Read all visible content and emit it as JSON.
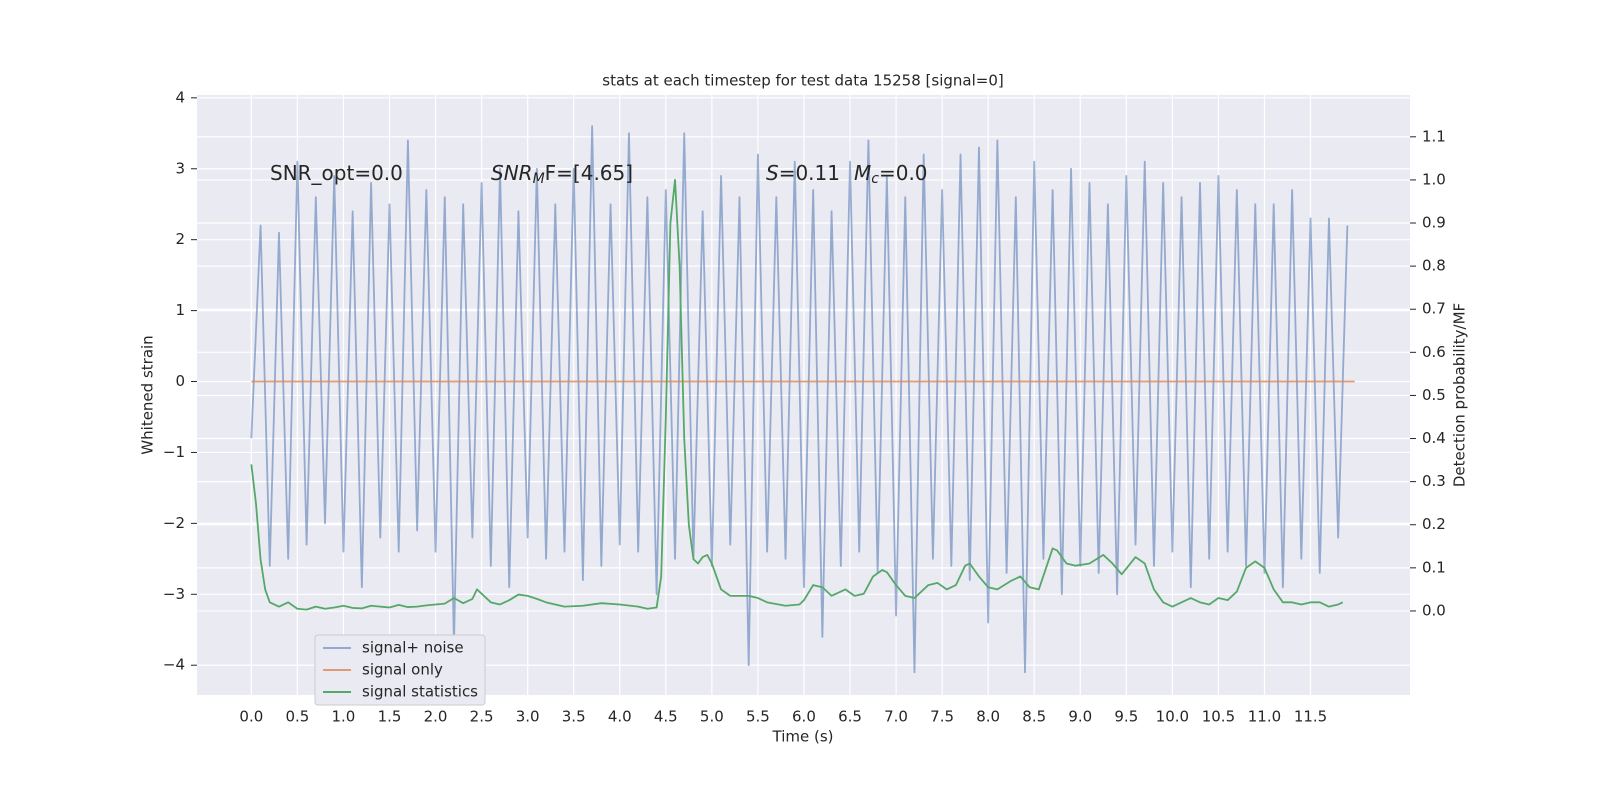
{
  "chart_data": {
    "type": "line",
    "title": "stats at each timestep for test data 15258 [signal=0]",
    "xlabel": "Time (s)",
    "ylabel": "Whitened strain",
    "y2label": "Detection probability/MF",
    "annotations": [
      [
        "SNR_opt=0.0"
      ],
      [
        "SNR",
        "M",
        "F=[4.65]"
      ],
      [
        "S",
        "=0.11",
        "M",
        "c",
        "=0.0"
      ]
    ],
    "xlim": [
      -0.59,
      12.58
    ],
    "ylim": [
      -4.42,
      4.04
    ],
    "y2lim": [
      -0.195,
      1.197
    ],
    "xticks": [
      {
        "value": 0,
        "label": "0.0"
      },
      0.5,
      {
        "value": 1,
        "label": "1.0"
      },
      1.5,
      {
        "value": 2,
        "label": "2.0"
      },
      2.5,
      {
        "value": 3,
        "label": "3.0"
      },
      3.5,
      {
        "value": 4,
        "label": "4.0"
      },
      4.5,
      {
        "value": 5,
        "label": "5.0"
      },
      5.5,
      {
        "value": 6,
        "label": "6.0"
      },
      6.5,
      {
        "value": 7,
        "label": "7.0"
      },
      7.5,
      {
        "value": 8,
        "label": "8.0"
      },
      8.5,
      {
        "value": 9,
        "label": "9.0"
      },
      9.5,
      {
        "value": 10,
        "label": "10.0"
      },
      10.5,
      {
        "value": 11,
        "label": "11.0"
      },
      11.5
    ],
    "yticks": [
      {
        "value": -4,
        "label": "−4"
      },
      {
        "value": -3,
        "label": "−3"
      },
      {
        "value": -2,
        "label": "−2"
      },
      {
        "value": -1,
        "label": "−1"
      },
      0,
      1,
      2,
      3,
      4
    ],
    "y2ticks": [
      {
        "value": 0,
        "label": "0.0"
      },
      0.1,
      0.2,
      0.3,
      0.4,
      0.5,
      0.6,
      0.7,
      0.8,
      0.9,
      {
        "value": 1,
        "label": "1.0"
      },
      1.1
    ],
    "grid": true,
    "legend_loc": "lower left",
    "series": [
      {
        "name": "signal+ noise",
        "color": "#4c72b0",
        "alpha": 0.55,
        "axis": "y",
        "x": [
          0,
          0.1,
          0.2,
          0.3,
          0.4,
          0.5,
          0.6,
          0.7,
          0.8,
          0.9,
          1,
          1.1,
          1.2,
          1.3,
          1.4,
          1.5,
          1.6,
          1.7,
          1.8,
          1.9,
          2,
          2.1,
          2.2,
          2.3,
          2.4,
          2.5,
          2.6,
          2.7,
          2.8,
          2.9,
          3,
          3.1,
          3.2,
          3.3,
          3.4,
          3.5,
          3.6,
          3.7,
          3.8,
          3.9,
          4,
          4.1,
          4.2,
          4.3,
          4.4,
          4.5,
          4.6,
          4.7,
          4.8,
          4.9,
          5,
          5.1,
          5.2,
          5.3,
          5.4,
          5.5,
          5.6,
          5.7,
          5.8,
          5.9,
          6,
          6.1,
          6.2,
          6.3,
          6.4,
          6.5,
          6.6,
          6.7,
          6.8,
          6.9,
          7,
          7.1,
          7.2,
          7.3,
          7.4,
          7.5,
          7.6,
          7.7,
          7.8,
          7.9,
          8,
          8.1,
          8.2,
          8.3,
          8.4,
          8.5,
          8.6,
          8.7,
          8.8,
          8.9,
          9,
          9.1,
          9.2,
          9.3,
          9.4,
          9.5,
          9.6,
          9.7,
          9.8,
          9.9,
          10,
          10.1,
          10.2,
          10.3,
          10.4,
          10.5,
          10.6,
          10.7,
          10.8,
          10.9,
          11,
          11.1,
          11.2,
          11.3,
          11.4,
          11.5,
          11.6,
          11.7,
          11.8,
          11.9
        ],
        "values": [
          -0.8,
          2.2,
          -2.6,
          2.1,
          -2.5,
          3.1,
          -2.3,
          2.6,
          -2.0,
          2.9,
          -2.4,
          2.4,
          -2.9,
          2.8,
          -2.2,
          2.5,
          -2.4,
          3.4,
          -2.1,
          2.7,
          -2.4,
          2.6,
          -3.7,
          2.5,
          -2.2,
          2.8,
          -2.6,
          3.0,
          -2.9,
          2.4,
          -2.2,
          3.0,
          -2.5,
          2.5,
          -2.4,
          3.0,
          -2.8,
          3.6,
          -2.6,
          2.5,
          -2.3,
          3.5,
          -2.4,
          2.6,
          -3.0,
          2.7,
          -2.5,
          3.5,
          -2.5,
          2.4,
          -2.6,
          2.9,
          -2.3,
          2.6,
          -4.0,
          3.2,
          -2.4,
          2.6,
          -2.5,
          3.1,
          -2.9,
          2.7,
          -3.6,
          2.4,
          -2.6,
          3.1,
          -2.4,
          3.4,
          -2.7,
          2.9,
          -3.3,
          2.6,
          -4.1,
          3.2,
          -2.5,
          2.7,
          -2.6,
          3.2,
          -2.8,
          3.3,
          -3.4,
          3.4,
          -2.7,
          2.6,
          -4.1,
          3.1,
          -2.5,
          2.7,
          -3.0,
          3.0,
          -2.6,
          2.8,
          -2.7,
          2.5,
          -3.0,
          2.9,
          -2.3,
          3.1,
          -2.6,
          2.8,
          -2.4,
          2.6,
          -2.9,
          2.8,
          -2.5,
          2.9,
          -2.4,
          2.7,
          -2.6,
          2.5,
          -2.7,
          2.5,
          -2.9,
          2.7,
          -2.5,
          2.3,
          -2.7,
          2.3,
          -2.2,
          2.2
        ]
      },
      {
        "name": "signal only",
        "color": "#dd8452",
        "alpha": 0.8,
        "axis": "y",
        "x": [
          0,
          11.98
        ],
        "values": [
          0,
          0
        ]
      },
      {
        "name": "signal statistics",
        "color": "#55a868",
        "alpha": 1,
        "axis": "y2",
        "x": [
          0,
          0.05,
          0.1,
          0.15,
          0.2,
          0.3,
          0.4,
          0.5,
          0.6,
          0.7,
          0.8,
          0.9,
          1,
          1.1,
          1.2,
          1.3,
          1.4,
          1.5,
          1.6,
          1.7,
          1.8,
          1.9,
          2,
          2.1,
          2.2,
          2.3,
          2.4,
          2.45,
          2.5,
          2.6,
          2.7,
          2.8,
          2.9,
          3,
          3.1,
          3.2,
          3.4,
          3.6,
          3.8,
          4,
          4.2,
          4.3,
          4.4,
          4.45,
          4.5,
          4.55,
          4.6,
          4.65,
          4.7,
          4.75,
          4.8,
          4.85,
          4.9,
          4.95,
          5,
          5.1,
          5.2,
          5.3,
          5.4,
          5.5,
          5.6,
          5.8,
          5.95,
          6,
          6.1,
          6.2,
          6.3,
          6.35,
          6.45,
          6.55,
          6.65,
          6.75,
          6.85,
          6.9,
          7,
          7.1,
          7.2,
          7.35,
          7.45,
          7.55,
          7.65,
          7.75,
          7.8,
          7.9,
          8,
          8.1,
          8.25,
          8.35,
          8.45,
          8.55,
          8.7,
          8.75,
          8.85,
          8.95,
          9.1,
          9.25,
          9.35,
          9.45,
          9.6,
          9.7,
          9.8,
          9.9,
          10,
          10.1,
          10.2,
          10.3,
          10.4,
          10.5,
          10.6,
          10.7,
          10.8,
          10.9,
          11,
          11.1,
          11.2,
          11.3,
          11.4,
          11.5,
          11.6,
          11.7,
          11.8,
          11.85
        ],
        "values": [
          0.34,
          0.25,
          0.12,
          0.05,
          0.02,
          0.01,
          0.02,
          0.005,
          0.003,
          0.01,
          0.005,
          0.008,
          0.012,
          0.007,
          0.006,
          0.012,
          0.01,
          0.008,
          0.014,
          0.009,
          0.01,
          0.013,
          0.015,
          0.017,
          0.03,
          0.018,
          0.028,
          0.05,
          0.04,
          0.02,
          0.015,
          0.025,
          0.038,
          0.035,
          0.028,
          0.02,
          0.01,
          0.012,
          0.018,
          0.015,
          0.01,
          0.005,
          0.008,
          0.08,
          0.45,
          0.9,
          1.0,
          0.8,
          0.4,
          0.2,
          0.12,
          0.11,
          0.125,
          0.13,
          0.11,
          0.05,
          0.035,
          0.035,
          0.035,
          0.03,
          0.02,
          0.012,
          0.015,
          0.025,
          0.06,
          0.055,
          0.035,
          0.04,
          0.05,
          0.035,
          0.04,
          0.08,
          0.095,
          0.09,
          0.06,
          0.035,
          0.03,
          0.06,
          0.065,
          0.05,
          0.06,
          0.105,
          0.11,
          0.08,
          0.055,
          0.05,
          0.07,
          0.08,
          0.055,
          0.05,
          0.145,
          0.14,
          0.11,
          0.105,
          0.11,
          0.13,
          0.11,
          0.085,
          0.125,
          0.11,
          0.05,
          0.02,
          0.01,
          0.02,
          0.03,
          0.02,
          0.015,
          0.03,
          0.025,
          0.045,
          0.1,
          0.115,
          0.1,
          0.05,
          0.02,
          0.02,
          0.015,
          0.02,
          0.02,
          0.01,
          0.015,
          0.02
        ]
      }
    ]
  }
}
